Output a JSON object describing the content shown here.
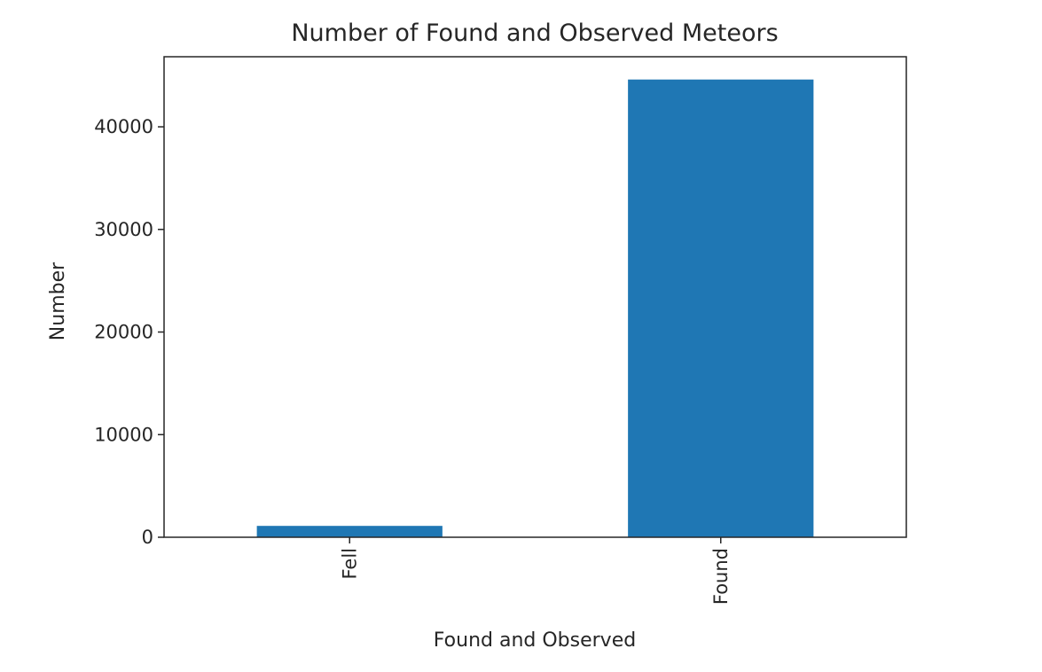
{
  "chart_data": {
    "type": "bar",
    "title": "Number of Found and Observed Meteors",
    "xlabel": "Found and Observed",
    "ylabel": "Number",
    "categories": [
      "Fell",
      "Found"
    ],
    "values": [
      1107,
      44609
    ],
    "ylim": [
      0,
      46829
    ],
    "yticks": [
      0,
      10000,
      20000,
      30000,
      40000
    ],
    "x_tick_rotation": "vertical",
    "bar_color": "#1f77b4",
    "grid": false,
    "legend": "none"
  }
}
